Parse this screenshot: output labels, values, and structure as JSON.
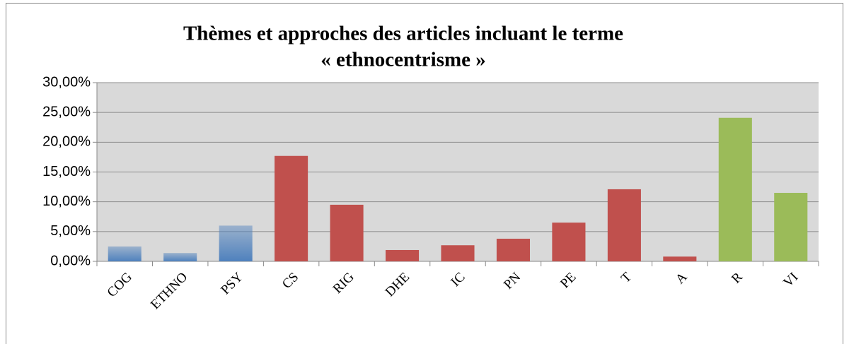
{
  "chart_data": {
    "type": "bar",
    "title": [
      "Thèmes et approches des articles incluant le terme",
      "« ethnocentrisme »"
    ],
    "categories": [
      "COG",
      "ETHNO",
      "PSY",
      "CS",
      "RIG",
      "DHE",
      "IC",
      "PN",
      "PE",
      "T",
      "A",
      "R",
      "VI"
    ],
    "values": [
      2.5,
      1.4,
      6.0,
      17.7,
      9.5,
      1.9,
      2.7,
      3.8,
      6.5,
      12.1,
      0.8,
      24.1,
      11.5
    ],
    "colors": [
      "#4f81bd",
      "#4f81bd",
      "#4f81bd",
      "#c0504d",
      "#c0504d",
      "#c0504d",
      "#c0504d",
      "#c0504d",
      "#c0504d",
      "#c0504d",
      "#c0504d",
      "#9bbb59",
      "#9bbb59"
    ],
    "ylim": [
      0,
      30
    ],
    "yticks": [
      {
        "value": 0,
        "label": "0,00%"
      },
      {
        "value": 5,
        "label": "5,00%"
      },
      {
        "value": 10,
        "label": "10,00%"
      },
      {
        "value": 15,
        "label": "15,00%"
      },
      {
        "value": 20,
        "label": "20,00%"
      },
      {
        "value": 25,
        "label": "25,00%"
      },
      {
        "value": 30,
        "label": "30,00%"
      }
    ],
    "grid": true
  }
}
